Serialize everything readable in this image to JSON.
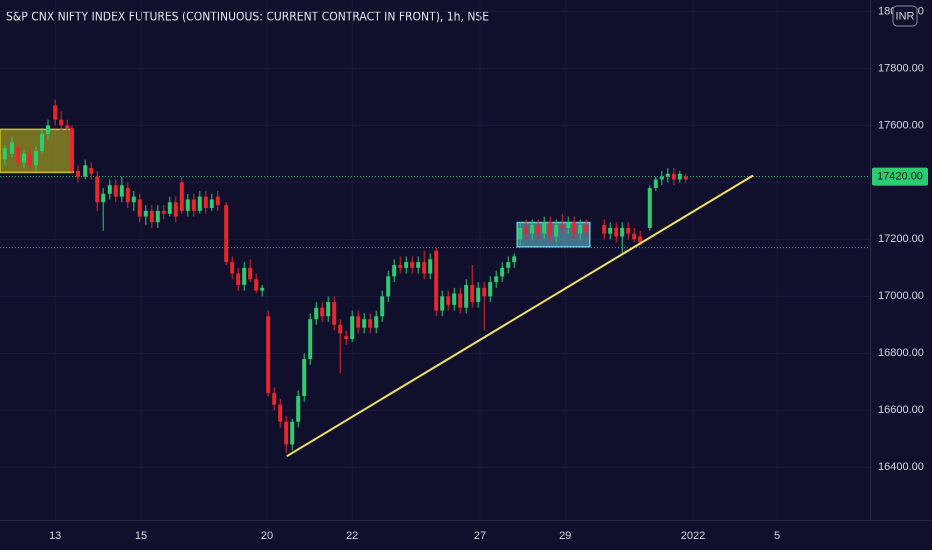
{
  "chart_data": {
    "type": "candlestick",
    "title": "S&P CNX NIFTY INDEX FUTURES (CONTINUOUS: CURRENT CONTRACT IN FRONT), 1h, NSE",
    "currency": "INR",
    "up_color": "#2ecc71",
    "down_color": "#e8262b",
    "grid": true,
    "xlim": [
      0,
      145
    ],
    "xticks": [
      {
        "value": 9.2,
        "label": "13"
      },
      {
        "value": 23.5,
        "label": "15"
      },
      {
        "value": 44.5,
        "label": "20"
      },
      {
        "value": 58.7,
        "label": "22"
      },
      {
        "value": 80,
        "label": "27"
      },
      {
        "value": 94.2,
        "label": "29"
      },
      {
        "value": 115.5,
        "label": "2022"
      },
      {
        "value": 129.5,
        "label": "5"
      }
    ],
    "ylim": [
      16215,
      18040
    ],
    "yticks": [
      {
        "value": 16400,
        "label": "16400.00"
      },
      {
        "value": 16600,
        "label": "16600.00"
      },
      {
        "value": 16800,
        "label": "16800.00"
      },
      {
        "value": 17000,
        "label": "17000.00"
      },
      {
        "value": 17200,
        "label": "17200.00"
      },
      {
        "value": 17400,
        "label": "17400.00"
      },
      {
        "value": 17600,
        "label": "17600.00"
      },
      {
        "value": 17800,
        "label": "17800.00"
      },
      {
        "value": 18000,
        "label": "18000.00"
      }
    ],
    "x": [
      0.8,
      2,
      3,
      4,
      5,
      6,
      7,
      8,
      9.2,
      10.2,
      11.2,
      12,
      13,
      14.2,
      15.2,
      16.2,
      17.2,
      18.3,
      19.3,
      20.3,
      21.3,
      22.3,
      23.3,
      24.3,
      25.3,
      26.3,
      27.3,
      28.3,
      29.3,
      30.3,
      31.3,
      32.3,
      33.3,
      34.3,
      35.3,
      36.3,
      37.7,
      38.7,
      39.7,
      40.7,
      41.7,
      42.7,
      43.7,
      44.7,
      45.7,
      46.7,
      47.7,
      48.7,
      49.7,
      50.7,
      51.7,
      52.7,
      53.7,
      54.7,
      55.7,
      56.7,
      57.7,
      58.7,
      59.7,
      60.7,
      61.7,
      62.7,
      63.7,
      64.7,
      65.7,
      66.7,
      67.7,
      68.7,
      69.7,
      70.7,
      71.7,
      72.7,
      73.7,
      74.7,
      75.7,
      76.7,
      77.7,
      78.7,
      79.7,
      80.7,
      81.7,
      82.7,
      83.7,
      84.7,
      85.7,
      86.7,
      87.7,
      88.7,
      89.7,
      90.7,
      91.7,
      92.7,
      93.7,
      94.7,
      95.7,
      96.7,
      97.7,
      100.7,
      101.7,
      102.7,
      103.7,
      104.7,
      105.7,
      106.7,
      108.3,
      109.3,
      110.3,
      111.3,
      112.3,
      113.3,
      114.3
    ],
    "open": [
      17480,
      17500,
      17520,
      17470,
      17500,
      17460,
      17510,
      17570,
      17670,
      17620,
      17600,
      17590,
      17440,
      17420,
      17450,
      17420,
      17330,
      17360,
      17390,
      17350,
      17380,
      17330,
      17340,
      17280,
      17300,
      17260,
      17300,
      17290,
      17330,
      17400,
      17300,
      17340,
      17300,
      17350,
      17310,
      17350,
      17320,
      17120,
      17080,
      17040,
      17100,
      17060,
      17020,
      16930,
      16660,
      16620,
      16560,
      16480,
      16560,
      16650,
      16780,
      16920,
      16960,
      16930,
      16980,
      16900,
      16860,
      16850,
      16930,
      16890,
      16920,
      16890,
      16930,
      17000,
      17070,
      17110,
      17100,
      17120,
      17100,
      17120,
      17080,
      17160,
      16950,
      17000,
      16970,
      17010,
      16960,
      17040,
      16980,
      17030,
      17000,
      17050,
      17070,
      17100,
      17120,
      17200,
      17240,
      17220,
      17250,
      17220,
      17260,
      17210,
      17250,
      17240,
      17260,
      17220,
      17250,
      17250,
      17220,
      17240,
      17210,
      17240,
      17220,
      17210,
      17240,
      17380,
      17410,
      17420,
      17430,
      17410,
      17420
    ],
    "high": [
      17530,
      17560,
      17540,
      17510,
      17520,
      17530,
      17590,
      17620,
      17690,
      17650,
      17620,
      17600,
      17460,
      17480,
      17470,
      17440,
      17380,
      17410,
      17410,
      17420,
      17400,
      17370,
      17360,
      17320,
      17320,
      17320,
      17320,
      17350,
      17350,
      17420,
      17360,
      17360,
      17370,
      17370,
      17360,
      17370,
      17330,
      17140,
      17100,
      17120,
      17130,
      17080,
      17040,
      16950,
      16680,
      16640,
      16580,
      16570,
      16670,
      16800,
      16940,
      16980,
      16980,
      17000,
      17000,
      16920,
      16880,
      16950,
      16950,
      16940,
      16940,
      16950,
      17020,
      17090,
      17130,
      17140,
      17140,
      17140,
      17140,
      17160,
      17150,
      17170,
      17020,
      17020,
      17030,
      17030,
      17060,
      17110,
      17050,
      17050,
      17070,
      17090,
      17120,
      17140,
      17150,
      17260,
      17270,
      17270,
      17270,
      17280,
      17280,
      17270,
      17290,
      17280,
      17280,
      17270,
      17270,
      17270,
      17260,
      17260,
      17260,
      17260,
      17240,
      17230,
      17390,
      17420,
      17440,
      17450,
      17450,
      17440,
      17430
    ],
    "low": [
      17460,
      17490,
      17450,
      17450,
      17440,
      17440,
      17500,
      17550,
      17600,
      17580,
      17570,
      17430,
      17400,
      17410,
      17410,
      17300,
      17230,
      17340,
      17330,
      17330,
      17310,
      17300,
      17260,
      17250,
      17240,
      17240,
      17270,
      17280,
      17260,
      17290,
      17280,
      17280,
      17290,
      17290,
      17300,
      17300,
      17110,
      17060,
      17020,
      17020,
      17050,
      17010,
      17000,
      16650,
      16600,
      16540,
      16450,
      16460,
      16540,
      16630,
      16760,
      16900,
      16910,
      16910,
      16880,
      16730,
      16830,
      16840,
      16870,
      16870,
      16870,
      16870,
      16910,
      16980,
      17050,
      17080,
      17080,
      17080,
      17080,
      17060,
      17060,
      16930,
      16930,
      16950,
      16950,
      16940,
      16940,
      16960,
      16960,
      16880,
      16980,
      17030,
      17050,
      17080,
      17100,
      17180,
      17200,
      17200,
      17200,
      17200,
      17190,
      17190,
      17220,
      17220,
      17200,
      17200,
      17210,
      17200,
      17200,
      17190,
      17150,
      17200,
      17190,
      17180,
      17230,
      17370,
      17390,
      17400,
      17390,
      17400,
      17400
    ],
    "close": [
      17520,
      17540,
      17470,
      17500,
      17460,
      17510,
      17570,
      17600,
      17620,
      17600,
      17590,
      17440,
      17420,
      17460,
      17430,
      17330,
      17360,
      17390,
      17350,
      17390,
      17330,
      17350,
      17280,
      17300,
      17260,
      17300,
      17290,
      17330,
      17280,
      17300,
      17340,
      17300,
      17350,
      17310,
      17340,
      17320,
      17120,
      17080,
      17040,
      17100,
      17060,
      17020,
      17030,
      16660,
      16620,
      16560,
      16480,
      16560,
      16650,
      16780,
      16920,
      16960,
      16930,
      16980,
      16900,
      16870,
      16850,
      16930,
      16890,
      16920,
      16890,
      16930,
      17000,
      17070,
      17110,
      17100,
      17120,
      17100,
      17120,
      17080,
      17130,
      16950,
      17000,
      16970,
      17010,
      16960,
      17040,
      16980,
      17030,
      17000,
      17050,
      17070,
      17100,
      17120,
      17140,
      17240,
      17220,
      17250,
      17220,
      17260,
      17210,
      17250,
      17240,
      17260,
      17220,
      17250,
      17230,
      17220,
      17240,
      17210,
      17240,
      17220,
      17200,
      17190,
      17380,
      17410,
      17420,
      17430,
      17410,
      17430,
      17410
    ],
    "rectangles": [
      {
        "x": [
          0,
          12.2
        ],
        "y": [
          17435,
          17586
        ],
        "color": "#c8c21e"
      },
      {
        "x": [
          86.2,
          98.3
        ],
        "y": [
          17174,
          17259
        ],
        "color": "#6fc3df"
      }
    ],
    "trendline": {
      "x": [
        47.8,
        125.5
      ],
      "y": [
        16439,
        17424
      ],
      "color": "#f2e35a"
    },
    "hlines": [
      {
        "value": 17420,
        "label": "17420.00",
        "color": "#2ecc71"
      },
      {
        "value": 17171,
        "color": "#5b7fd6"
      }
    ]
  }
}
